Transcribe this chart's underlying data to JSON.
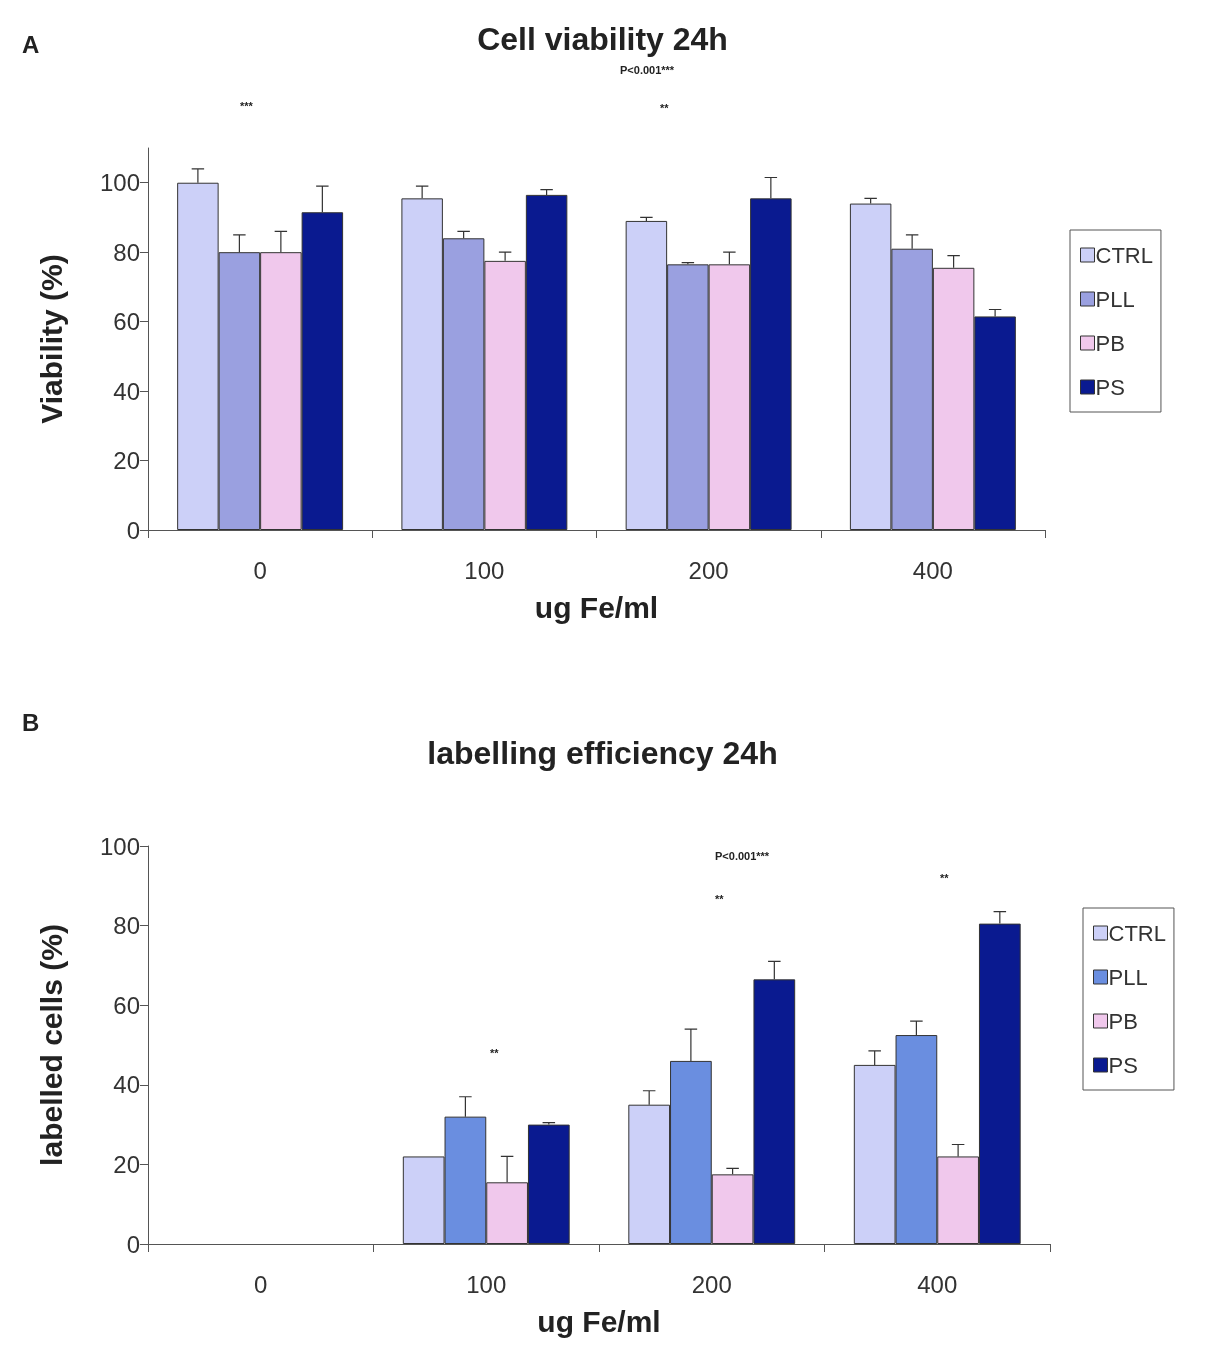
{
  "chart_data": [
    {
      "type": "bar",
      "title": "Cell viability 24h",
      "xlabel": "ug Fe/ml",
      "ylabel": "Viability (%)",
      "categories": [
        "0",
        "100",
        "200",
        "400"
      ],
      "series": [
        {
          "name": "CTRL",
          "color": "#ccd0f8",
          "values": [
            100,
            95.5,
            89,
            94
          ],
          "errors": [
            [
              100,
              104
            ],
            [
              95.5,
              99
            ],
            [
              89,
              90
            ],
            [
              94,
              95.5
            ]
          ]
        },
        {
          "name": "PLL",
          "color": "#9aa0e0",
          "values": [
            80,
            84,
            76.5,
            81
          ],
          "errors": [
            [
              80,
              85
            ],
            [
              84,
              86
            ],
            [
              76.5,
              77
            ],
            [
              81,
              85
            ]
          ]
        },
        {
          "name": "PB",
          "color": "#f0c8ec",
          "values": [
            80,
            77.5,
            76.5,
            75.5
          ],
          "errors": [
            [
              80,
              86
            ],
            [
              77.5,
              80
            ],
            [
              76.5,
              80
            ],
            [
              75.5,
              79
            ]
          ]
        },
        {
          "name": "PS",
          "color": "#0a1a90",
          "values": [
            91.5,
            96.5,
            95.5,
            61.5
          ],
          "errors": [
            [
              91.5,
              99
            ],
            [
              96.5,
              98
            ],
            [
              95.5,
              101.5
            ],
            [
              61.5,
              63.5
            ]
          ]
        }
      ],
      "ylim": [
        0,
        110
      ],
      "yticks": [
        0,
        20,
        40,
        60,
        80,
        100
      ],
      "grid": false,
      "legend": "right",
      "annotations": [
        "A",
        "P<0.001***",
        "***",
        "**"
      ]
    },
    {
      "type": "bar",
      "title": "labelling efficiency 24h",
      "xlabel": "ug Fe/ml",
      "ylabel": "labelled cells (%)",
      "categories": [
        "0",
        "100",
        "200",
        "400"
      ],
      "series": [
        {
          "name": "CTRL",
          "color": "#ccd0f8",
          "values": [
            null,
            22,
            35,
            45
          ],
          "errors": [
            null,
            null,
            [
              35,
              38.5
            ],
            [
              45,
              48.5
            ]
          ]
        },
        {
          "name": "PLL",
          "color": "#6a8ee0",
          "values": [
            null,
            32,
            46,
            52.5
          ],
          "errors": [
            null,
            [
              32,
              37
            ],
            [
              46,
              54
            ],
            [
              52.5,
              56
            ]
          ]
        },
        {
          "name": "PB",
          "color": "#f0c8ec",
          "values": [
            null,
            15.5,
            17.5,
            22
          ],
          "errors": [
            null,
            [
              15.5,
              22
            ],
            [
              17.5,
              19
            ],
            [
              22,
              25
            ]
          ]
        },
        {
          "name": "PS",
          "color": "#0a1a90",
          "values": [
            null,
            30,
            66.5,
            80.5
          ],
          "errors": [
            null,
            [
              30,
              30.5
            ],
            [
              66.5,
              71
            ],
            [
              80.5,
              83.5
            ]
          ]
        }
      ],
      "ylim": [
        0,
        100
      ],
      "yticks": [
        0,
        20,
        40,
        60,
        80,
        100
      ],
      "grid": false,
      "legend": "right",
      "annotations": [
        "B",
        "P<0.001***",
        "**",
        "**",
        "**"
      ]
    }
  ]
}
